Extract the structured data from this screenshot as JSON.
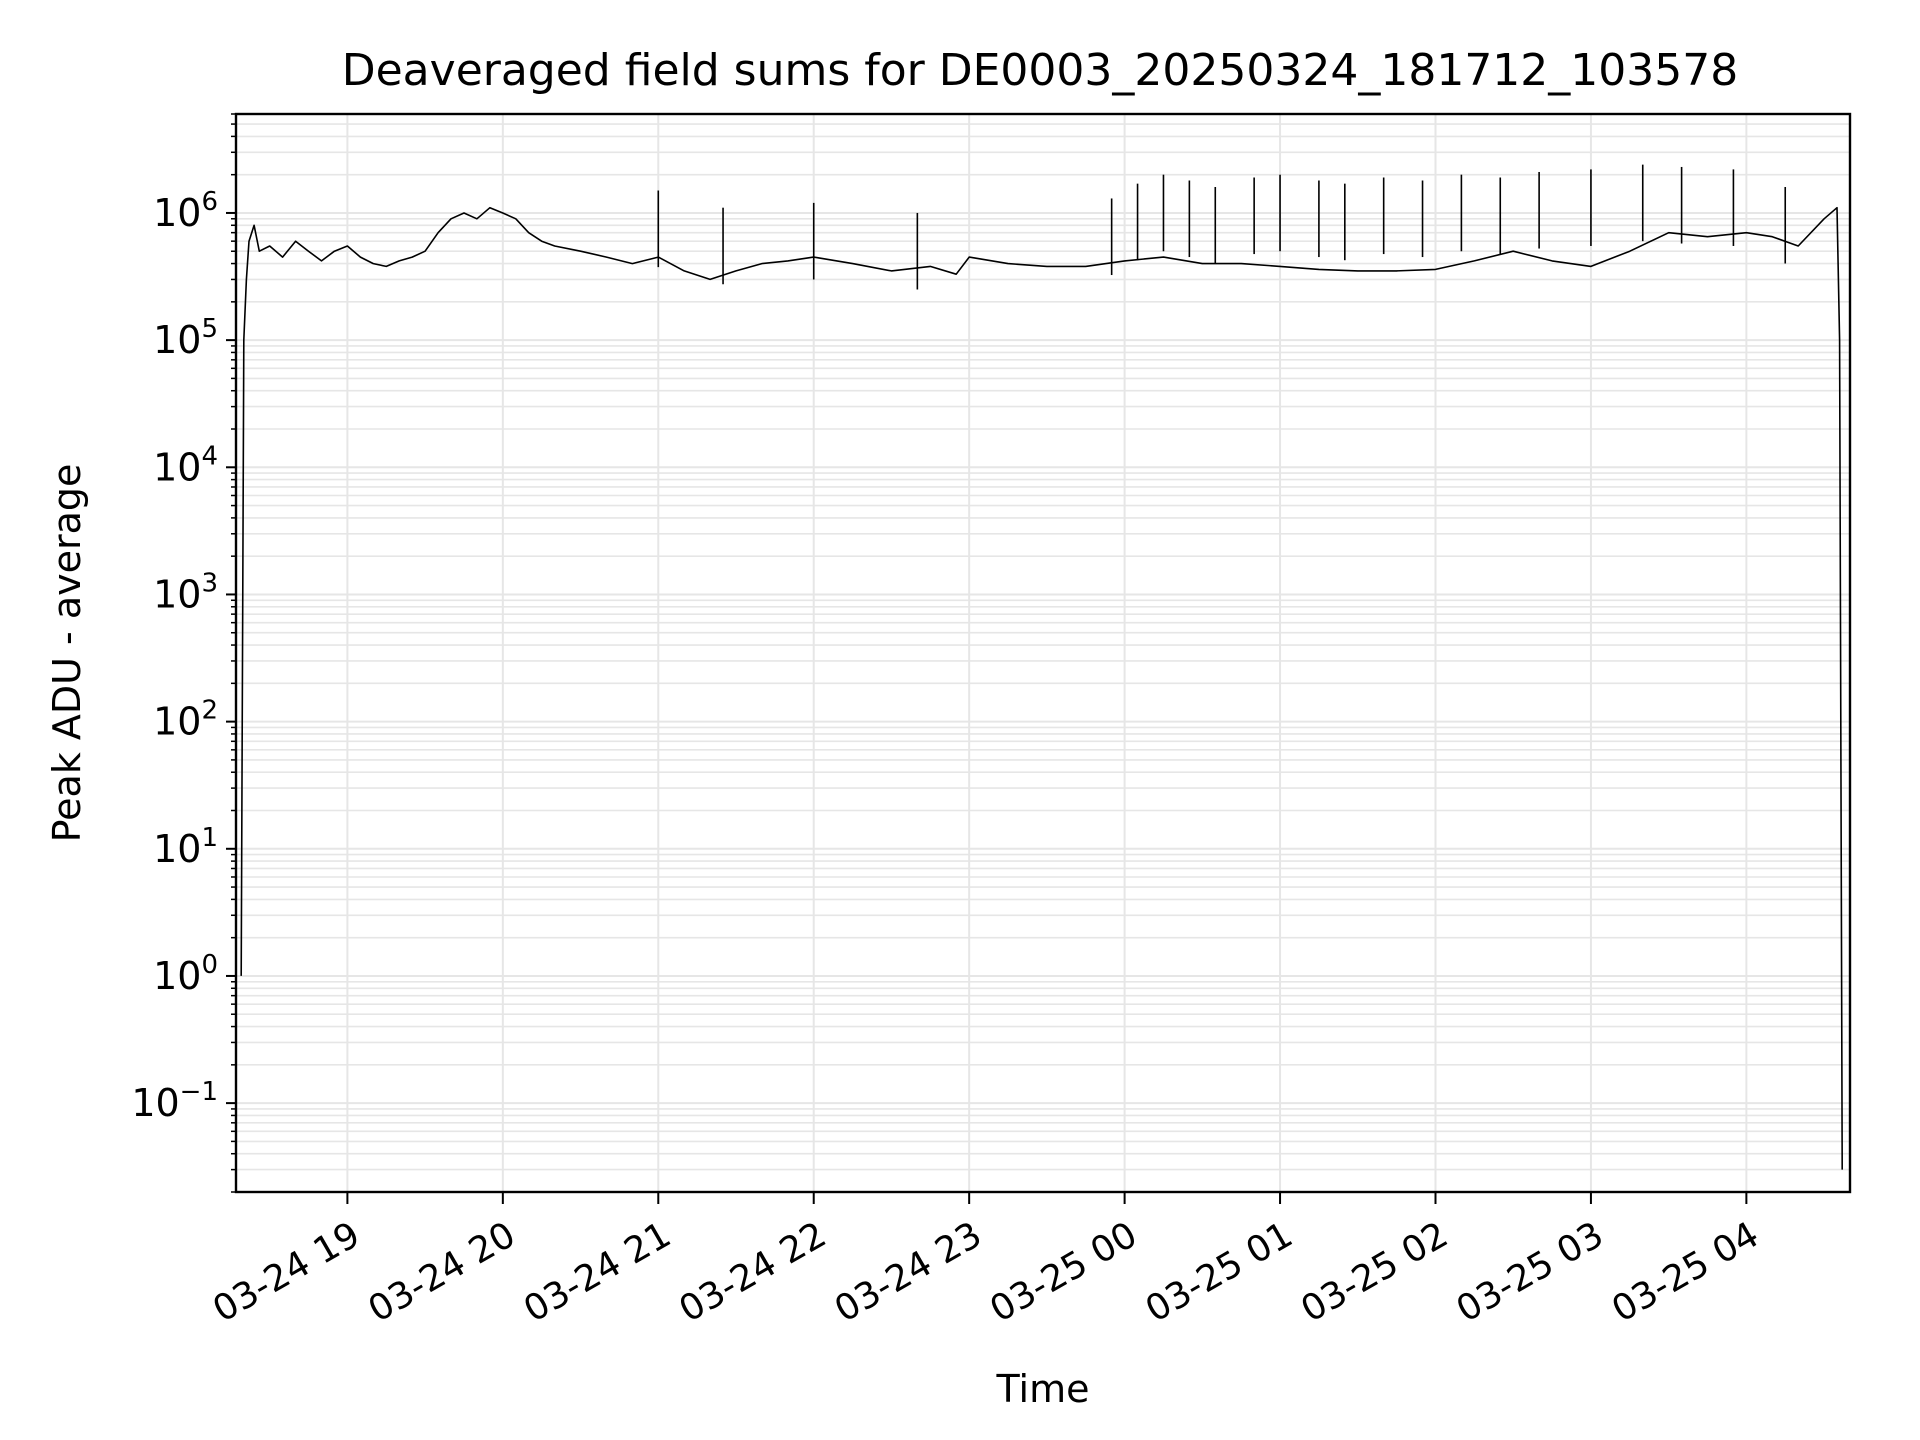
{
  "chart_data": {
    "type": "line",
    "title": "Deaveraged field sums for DE0003_20250324_181712_103578",
    "xlabel": "Time",
    "ylabel": "Peak ADU - average",
    "yscale": "log",
    "grid": true,
    "xlim": [
      "2025-03-24 18:17",
      "2025-03-25 04:40"
    ],
    "ylim": [
      0.02,
      6000000
    ],
    "x_ticks": [
      "03-24 19",
      "03-24 20",
      "03-24 21",
      "03-24 22",
      "03-24 23",
      "03-25 00",
      "03-25 01",
      "03-25 02",
      "03-25 03",
      "03-25 04"
    ],
    "y_ticks": [
      {
        "base": "10",
        "exp": "−1",
        "value": 0.1
      },
      {
        "base": "10",
        "exp": "0",
        "value": 1
      },
      {
        "base": "10",
        "exp": "1",
        "value": 10
      },
      {
        "base": "10",
        "exp": "2",
        "value": 100
      },
      {
        "base": "10",
        "exp": "3",
        "value": 1000
      },
      {
        "base": "10",
        "exp": "4",
        "value": 10000
      },
      {
        "base": "10",
        "exp": "5",
        "value": 100000
      },
      {
        "base": "10",
        "exp": "6",
        "value": 1000000
      }
    ],
    "line_color": "#000000",
    "grid_color": "#e6e6e6",
    "series": [
      {
        "x": [
          "2025-03-24 18:19",
          "2025-03-24 18:20",
          "2025-03-24 18:21",
          "2025-03-24 18:22",
          "2025-03-24 18:24",
          "2025-03-24 18:26",
          "2025-03-24 18:30",
          "2025-03-24 18:35",
          "2025-03-24 18:40",
          "2025-03-24 18:45",
          "2025-03-24 18:50",
          "2025-03-24 18:55",
          "2025-03-24 19:00",
          "2025-03-24 19:05",
          "2025-03-24 19:10",
          "2025-03-24 19:15",
          "2025-03-24 19:20",
          "2025-03-24 19:25",
          "2025-03-24 19:30",
          "2025-03-24 19:35",
          "2025-03-24 19:40",
          "2025-03-24 19:45",
          "2025-03-24 19:50",
          "2025-03-24 19:55",
          "2025-03-24 20:00",
          "2025-03-24 20:05",
          "2025-03-24 20:10",
          "2025-03-24 20:15",
          "2025-03-24 20:20",
          "2025-03-24 20:30",
          "2025-03-24 20:40",
          "2025-03-24 20:50",
          "2025-03-24 21:00",
          "2025-03-24 21:10",
          "2025-03-24 21:20",
          "2025-03-24 21:30",
          "2025-03-24 21:40",
          "2025-03-24 21:50",
          "2025-03-24 22:00",
          "2025-03-24 22:15",
          "2025-03-24 22:30",
          "2025-03-24 22:45",
          "2025-03-24 22:55",
          "2025-03-24 23:00",
          "2025-03-24 23:15",
          "2025-03-24 23:30",
          "2025-03-24 23:45",
          "2025-03-25 00:00",
          "2025-03-25 00:15",
          "2025-03-25 00:30",
          "2025-03-25 00:45",
          "2025-03-25 01:00",
          "2025-03-25 01:15",
          "2025-03-25 01:30",
          "2025-03-25 01:45",
          "2025-03-25 02:00",
          "2025-03-25 02:15",
          "2025-03-25 02:30",
          "2025-03-25 02:45",
          "2025-03-25 03:00",
          "2025-03-25 03:15",
          "2025-03-25 03:30",
          "2025-03-25 03:45",
          "2025-03-25 04:00",
          "2025-03-25 04:10",
          "2025-03-25 04:20",
          "2025-03-25 04:30",
          "2025-03-25 04:35",
          "2025-03-25 04:36",
          "2025-03-25 04:37"
        ],
        "y": [
          1,
          100000,
          300000,
          600000,
          800000,
          500000,
          550000,
          450000,
          600000,
          500000,
          420000,
          500000,
          550000,
          450000,
          400000,
          380000,
          420000,
          450000,
          500000,
          700000,
          900000,
          1000000,
          900000,
          1100000,
          1000000,
          900000,
          700000,
          600000,
          550000,
          500000,
          450000,
          400000,
          450000,
          350000,
          300000,
          350000,
          400000,
          420000,
          450000,
          400000,
          350000,
          380000,
          330000,
          450000,
          400000,
          380000,
          380000,
          420000,
          450000,
          400000,
          400000,
          380000,
          360000,
          350000,
          350000,
          360000,
          420000,
          500000,
          420000,
          380000,
          500000,
          700000,
          650000,
          700000,
          650000,
          550000,
          900000,
          1100000,
          100000,
          0.03
        ]
      }
    ],
    "spikes": [
      {
        "x": "2025-03-24 21:00",
        "y": 1500000
      },
      {
        "x": "2025-03-24 21:25",
        "y": 1100000
      },
      {
        "x": "2025-03-24 22:00",
        "y": 1200000
      },
      {
        "x": "2025-03-24 22:40",
        "y": 1000000
      },
      {
        "x": "2025-03-24 23:55",
        "y": 1300000
      },
      {
        "x": "2025-03-25 00:05",
        "y": 1700000
      },
      {
        "x": "2025-03-25 00:15",
        "y": 2000000
      },
      {
        "x": "2025-03-25 00:25",
        "y": 1800000
      },
      {
        "x": "2025-03-25 00:35",
        "y": 1600000
      },
      {
        "x": "2025-03-25 00:50",
        "y": 1900000
      },
      {
        "x": "2025-03-25 01:00",
        "y": 2000000
      },
      {
        "x": "2025-03-25 01:15",
        "y": 1800000
      },
      {
        "x": "2025-03-25 01:25",
        "y": 1700000
      },
      {
        "x": "2025-03-25 01:40",
        "y": 1900000
      },
      {
        "x": "2025-03-25 01:55",
        "y": 1800000
      },
      {
        "x": "2025-03-25 02:10",
        "y": 2000000
      },
      {
        "x": "2025-03-25 02:25",
        "y": 1900000
      },
      {
        "x": "2025-03-25 02:40",
        "y": 2100000
      },
      {
        "x": "2025-03-25 03:00",
        "y": 2200000
      },
      {
        "x": "2025-03-25 03:20",
        "y": 2400000
      },
      {
        "x": "2025-03-25 03:35",
        "y": 2300000
      },
      {
        "x": "2025-03-25 03:55",
        "y": 2200000
      },
      {
        "x": "2025-03-25 04:15",
        "y": 1600000
      }
    ]
  }
}
